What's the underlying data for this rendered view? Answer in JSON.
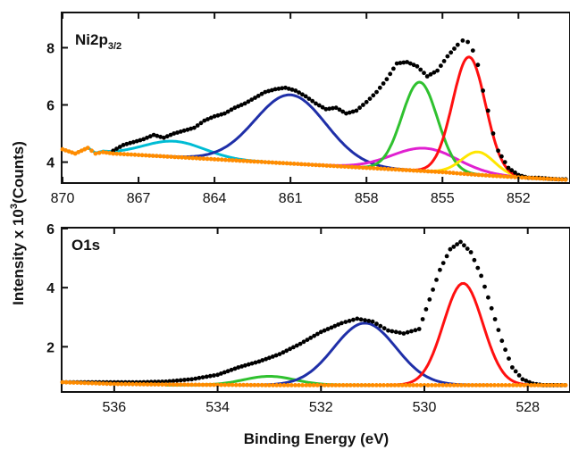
{
  "chart_data": [
    {
      "type": "line",
      "title_main": "Ni2p",
      "title_sub": "3/2",
      "xlim": [
        870,
        850
      ],
      "ylim": [
        3.3,
        9.2
      ],
      "x_ticks": [
        870,
        867,
        864,
        861,
        858,
        855,
        852
      ],
      "y_ticks": [
        4,
        6,
        8
      ],
      "grid": false,
      "series": [
        {
          "color": "#000000",
          "style": "dots",
          "x": [
            868,
            867.6,
            867.2,
            866.8,
            866.4,
            866,
            865.6,
            865.2,
            864.8,
            864.4,
            864,
            863.6,
            863.2,
            862.8,
            862.4,
            862,
            861.6,
            861.2,
            860.8,
            860.4,
            860,
            859.6,
            859.2,
            858.8,
            858.4,
            858,
            857.6,
            857.2,
            856.8,
            856.4,
            856,
            855.6,
            855.2,
            854.8,
            854.4,
            854.2,
            854,
            853.8,
            853.6,
            853.4,
            853.2,
            853,
            852.8,
            852.4,
            852,
            851.6,
            851.2,
            850.8,
            850.4,
            850
          ],
          "y": [
            4.4,
            4.6,
            4.7,
            4.8,
            4.95,
            4.85,
            5.0,
            5.1,
            5.2,
            5.45,
            5.6,
            5.7,
            5.9,
            6.05,
            6.25,
            6.45,
            6.55,
            6.6,
            6.5,
            6.3,
            6.05,
            5.85,
            5.9,
            5.7,
            5.8,
            6.1,
            6.45,
            6.9,
            7.45,
            7.5,
            7.35,
            7.0,
            7.2,
            7.7,
            8.1,
            8.25,
            8.2,
            7.9,
            7.4,
            6.5,
            5.8,
            5.0,
            4.4,
            3.8,
            3.55,
            3.45,
            3.45,
            3.42,
            3.4,
            3.4
          ]
        },
        {
          "color": "#ff8c00",
          "style": "dots",
          "x": [
            870,
            869.5,
            869,
            868.7,
            868.4,
            868,
            867,
            866,
            865,
            864,
            863,
            862,
            861,
            860,
            859,
            858,
            857,
            856,
            855,
            854,
            853,
            852,
            851,
            850
          ],
          "y": [
            4.45,
            4.3,
            4.5,
            4.3,
            4.35,
            4.3,
            4.25,
            4.2,
            4.15,
            4.1,
            4.05,
            4.0,
            3.95,
            3.9,
            3.85,
            3.8,
            3.75,
            3.7,
            3.65,
            3.58,
            3.52,
            3.47,
            3.42,
            3.38
          ]
        },
        {
          "color": "#00bcd4",
          "style": "peak",
          "center": 865.6,
          "amp": 0.55,
          "width": 1.2
        },
        {
          "color": "#1f2fa8",
          "style": "peak",
          "center": 861.0,
          "amp": 2.4,
          "width": 1.4
        },
        {
          "color": "#e020d0",
          "style": "peak",
          "center": 855.7,
          "amp": 0.8,
          "width": 1.3
        },
        {
          "color": "#2fc12f",
          "style": "peak",
          "center": 855.9,
          "amp": 3.1,
          "width": 0.7
        },
        {
          "color": "#ffe600",
          "style": "peak",
          "center": 853.6,
          "amp": 0.8,
          "width": 0.65
        },
        {
          "color": "#ff1010",
          "style": "peak",
          "center": 853.95,
          "amp": 4.1,
          "width": 0.65
        }
      ]
    },
    {
      "type": "line",
      "title_main": "O1s",
      "xlim": [
        537,
        527.2
      ],
      "ylim": [
        0.5,
        6.0
      ],
      "x_ticks": [
        536,
        534,
        532,
        530,
        528
      ],
      "y_ticks": [
        2,
        4,
        6
      ],
      "grid": false,
      "xlabel": "Binding Energy (eV)",
      "series": [
        {
          "color": "#000000",
          "style": "dots",
          "x": [
            537,
            536.5,
            536,
            535.5,
            535,
            534.5,
            534,
            533.6,
            533.2,
            532.8,
            532.4,
            532,
            531.6,
            531.3,
            531,
            530.7,
            530.4,
            530.1,
            529.9,
            529.7,
            529.5,
            529.3,
            529.1,
            528.9,
            528.7,
            528.5,
            528.3,
            528.1,
            527.9,
            527.7,
            527.5,
            527.2
          ],
          "y": [
            0.8,
            0.8,
            0.8,
            0.8,
            0.82,
            0.9,
            1.05,
            1.3,
            1.5,
            1.75,
            2.1,
            2.5,
            2.8,
            2.95,
            2.85,
            2.55,
            2.45,
            2.6,
            3.6,
            4.6,
            5.3,
            5.55,
            5.2,
            4.4,
            3.3,
            2.2,
            1.3,
            0.9,
            0.75,
            0.7,
            0.7,
            0.7
          ]
        },
        {
          "color": "#ff8c00",
          "style": "dots",
          "x": [
            537,
            536,
            535,
            534,
            533,
            532,
            531,
            530,
            529,
            528,
            527.2
          ],
          "y": [
            0.8,
            0.74,
            0.72,
            0.71,
            0.7,
            0.7,
            0.7,
            0.7,
            0.7,
            0.7,
            0.7
          ]
        },
        {
          "color": "#2fc12f",
          "style": "peak",
          "center": 533.0,
          "amp": 0.3,
          "width": 0.5,
          "base": 0.7
        },
        {
          "color": "#1f2fa8",
          "style": "peak",
          "center": 531.15,
          "amp": 2.1,
          "width": 0.6,
          "base": 0.7
        },
        {
          "color": "#ff1010",
          "style": "peak",
          "center": 529.25,
          "amp": 3.45,
          "width": 0.38,
          "base": 0.7
        }
      ]
    }
  ],
  "shared": {
    "ylabel": "Intensity x 10",
    "ylabel_sup": "3",
    "ylabel_tail": "(Counts)"
  }
}
